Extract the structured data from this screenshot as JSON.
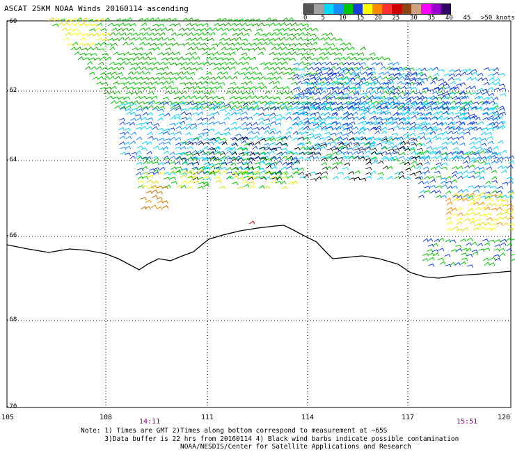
{
  "title": "ASCAT 25KM NOAA Winds 20160114 ascending",
  "legend": {
    "colors": [
      "#555555",
      "#a0a0a0",
      "#00d8ff",
      "#1a8cff",
      "#00c800",
      "#1a3fd8",
      "#ffff00",
      "#ff8800",
      "#ff3030",
      "#cc0000",
      "#8b4513",
      "#d0a080",
      "#ff00ff",
      "#9900cc",
      "#330066"
    ],
    "ticks": [
      {
        "label": "0",
        "pos": 0
      },
      {
        "label": "5",
        "pos": 1
      },
      {
        "label": "10",
        "pos": 2
      },
      {
        "label": "15",
        "pos": 3
      },
      {
        "label": "20",
        "pos": 4
      },
      {
        "label": "25",
        "pos": 5
      },
      {
        "label": "30",
        "pos": 6
      },
      {
        "label": "35",
        "pos": 7
      },
      {
        "label": "40",
        "pos": 8
      },
      {
        "label": "45",
        "pos": 9
      },
      {
        "label": ">50 knots",
        "pos": 10
      }
    ]
  },
  "lat_labels": [
    "-60",
    "-62",
    "-64",
    "-66",
    "-68",
    "-70"
  ],
  "lon_labels": [
    "105",
    "108",
    "111",
    "114",
    "117",
    "120"
  ],
  "times": [
    "14:11",
    "15:51"
  ],
  "note_lines": [
    "Note: 1) Times are GMT 2)Times along bottom correspond to measurement at ~65S",
    "      3)Data buffer is 22 hrs from 20160114 4) Black wind barbs indicate possible contamination",
    "                         NOAA/NESDIS/Center for Satellite Applications and Research"
  ]
}
